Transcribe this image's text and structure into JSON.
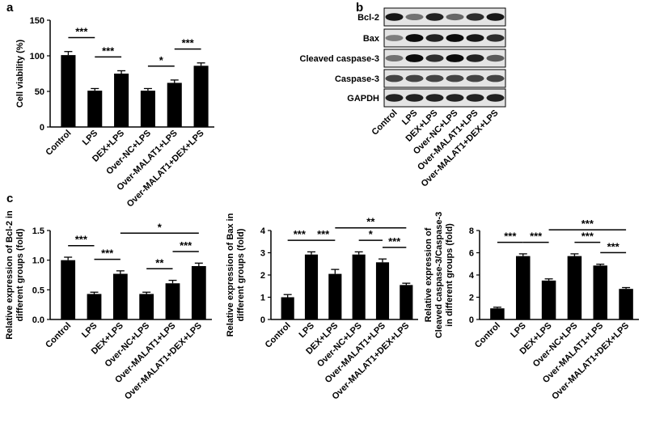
{
  "chart_data": [
    {
      "type": "bar",
      "panel": "a",
      "ylabel": [
        "Cell viability (%)"
      ],
      "categories": [
        "Control",
        "LPS",
        "DEX+LPS",
        "Over-NC+LPS",
        "Over-MALAT1+LPS",
        "Over-MALAT1+DEX+LPS"
      ],
      "values": [
        101,
        51,
        75,
        51,
        62,
        86
      ],
      "errors": [
        5,
        3,
        4,
        3,
        4,
        4
      ],
      "color": "#000000",
      "ylim": [
        0,
        150
      ],
      "yticks": [
        0,
        50,
        100,
        150
      ],
      "annotations": [
        {
          "from": 0,
          "to": 1,
          "label": "***"
        },
        {
          "from": 1,
          "to": 2,
          "label": "***"
        },
        {
          "from": 3,
          "to": 4,
          "label": "*"
        },
        {
          "from": 4,
          "to": 5,
          "label": "***"
        }
      ]
    },
    {
      "type": "bar",
      "panel": "c",
      "ylabel": [
        "Relative expression of Bcl-2 in",
        "different groups (fold)"
      ],
      "categories": [
        "Control",
        "LPS",
        "DEX+LPS",
        "Over-NC+LPS",
        "Over-MALAT1+LPS",
        "Over-MALAT1+DEX+LPS"
      ],
      "values": [
        1.0,
        0.43,
        0.77,
        0.43,
        0.61,
        0.9
      ],
      "errors": [
        0.05,
        0.03,
        0.05,
        0.03,
        0.05,
        0.05
      ],
      "color": "#000000",
      "ylim": [
        0,
        1.5
      ],
      "yticks": [
        {
          "value": 0,
          "label": "0.0"
        },
        0.5,
        {
          "value": 1,
          "label": "1.0"
        },
        1.5
      ],
      "annotations": [
        {
          "from": 0,
          "to": 1,
          "label": "***"
        },
        {
          "from": 1,
          "to": 2,
          "label": "***"
        },
        {
          "from": 3,
          "to": 4,
          "label": "**"
        },
        {
          "from": 4,
          "to": 5,
          "label": "***"
        },
        {
          "from": 2,
          "to": 5,
          "label": "*"
        }
      ]
    },
    {
      "type": "bar",
      "ylabel": [
        "Relative expression of Bax in",
        "different groups (fold)"
      ],
      "categories": [
        "Control",
        "LPS",
        "DEX+LPS",
        "Over-NC+LPS",
        "Over-MALAT1+LPS",
        "Over-MALAT1+DEX+LPS"
      ],
      "values": [
        1.0,
        2.92,
        2.05,
        2.92,
        2.57,
        1.55
      ],
      "errors": [
        0.12,
        0.12,
        0.2,
        0.12,
        0.15,
        0.08
      ],
      "color": "#000000",
      "ylim": [
        0,
        4
      ],
      "yticks": [
        0,
        1,
        2,
        3,
        4
      ],
      "annotations": [
        {
          "from": 0,
          "to": 1,
          "label": "***"
        },
        {
          "from": 1,
          "to": 2,
          "label": "***"
        },
        {
          "from": 3,
          "to": 4,
          "label": "*"
        },
        {
          "from": 4,
          "to": 5,
          "label": "***"
        },
        {
          "from": 2,
          "to": 5,
          "label": "**"
        }
      ]
    },
    {
      "type": "bar",
      "ylabel": [
        "Relative expression of",
        "Cleaved caspase-3/Caspase-3",
        "in different groups (fold)"
      ],
      "categories": [
        "Control",
        "LPS",
        "DEX+LPS",
        "Over-NC+LPS",
        "Over-MALAT1+LPS",
        "Over-MALAT1+DEX+LPS"
      ],
      "values": [
        1.0,
        5.7,
        3.5,
        5.7,
        4.85,
        2.75
      ],
      "errors": [
        0.1,
        0.2,
        0.15,
        0.2,
        0.12,
        0.12
      ],
      "color": "#000000",
      "ylim": [
        0,
        8
      ],
      "yticks": [
        0,
        2,
        4,
        6,
        8
      ],
      "annotations": [
        {
          "from": 0,
          "to": 1,
          "label": "***"
        },
        {
          "from": 1,
          "to": 2,
          "label": "***"
        },
        {
          "from": 3,
          "to": 4,
          "label": "***"
        },
        {
          "from": 4,
          "to": 5,
          "label": "***"
        },
        {
          "from": 2,
          "to": 5,
          "label": "***"
        }
      ]
    }
  ],
  "blot": {
    "panel": "b",
    "rows": [
      "Bcl-2",
      "Bax",
      "Cleaved caspase-3",
      "Caspase-3",
      "GAPDH"
    ],
    "lanes": [
      "Control",
      "LPS",
      "DEX+LPS",
      "Over-NC+LPS",
      "Over-MALAT1+LPS",
      "Over-MALAT1+DEX+LPS"
    ]
  }
}
